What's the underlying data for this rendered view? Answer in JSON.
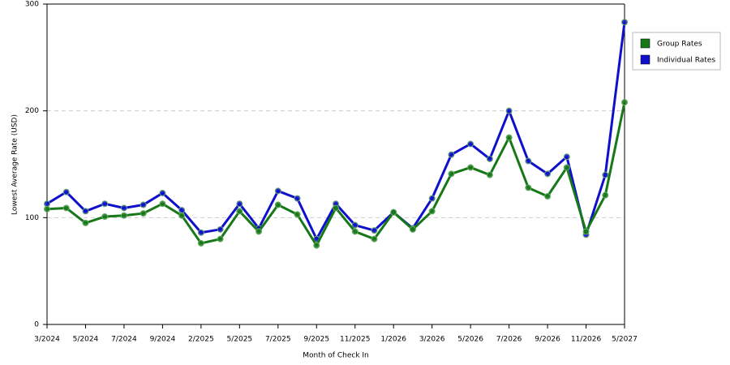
{
  "chart_data": {
    "type": "line",
    "x_label": "Month of Check In",
    "y_label": "Lowest Average Rate (USD)",
    "categories": [
      "3/2024",
      null,
      "5/2024",
      null,
      "7/2024",
      null,
      "9/2024",
      null,
      "2/2025",
      null,
      "5/2025",
      null,
      "7/2025",
      null,
      "9/2025",
      null,
      "11/2025",
      null,
      "1/2026",
      null,
      "3/2026",
      null,
      "5/2026",
      null,
      "7/2026",
      null,
      "9/2026",
      null,
      "11/2026",
      null,
      "5/2027"
    ],
    "series": [
      {
        "name": "Group Rates",
        "color": "#177817",
        "values": [
          108,
          109,
          95,
          101,
          102,
          104,
          113,
          102,
          76,
          80,
          106,
          87,
          112,
          103,
          74,
          109,
          87,
          80,
          105,
          89,
          106,
          141,
          147,
          140,
          175,
          128,
          120,
          147,
          87,
          121,
          208
        ]
      },
      {
        "name": "Individual Rates",
        "color": "#1010cc",
        "values": [
          113,
          124,
          106,
          113,
          109,
          112,
          123,
          107,
          86,
          89,
          113,
          90,
          125,
          118,
          80,
          113,
          93,
          88,
          105,
          90,
          118,
          159,
          169,
          155,
          200,
          153,
          141,
          157,
          84,
          140,
          283
        ]
      }
    ],
    "ylim": [
      0,
      300
    ],
    "yticks": [
      0,
      100,
      200,
      300
    ],
    "grid": true,
    "legend": "right"
  }
}
